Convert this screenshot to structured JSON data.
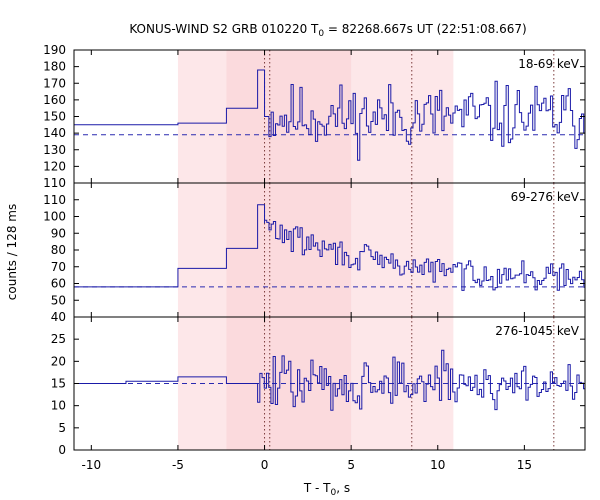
{
  "chart_data": {
    "type": "line",
    "title_main": "KONUS-WIND S2 GRB 010220 T",
    "title_sub": "0",
    "title_rest": " = 82268.667s UT (22:51:08.667)",
    "xlabel_main": "T - T",
    "xlabel_sub": "0",
    "xlabel_rest": ", s",
    "ylabel": "counts / 128 ms",
    "xlim": [
      -11,
      18.5
    ],
    "xticks": [
      -10,
      -5,
      0,
      5,
      10,
      15
    ],
    "shading": [
      {
        "from": -5,
        "to": 10.9,
        "color": "#fde7e9"
      },
      {
        "from": -2.2,
        "to": 5.0,
        "color": "#fbdadd"
      }
    ],
    "vlines": [
      0,
      0.3,
      8.5,
      16.7
    ],
    "line_color": "#1a1aa8",
    "panels": [
      {
        "name": "18-69 keV",
        "ylim": [
          110,
          190
        ],
        "yticks": [
          110,
          120,
          130,
          140,
          150,
          160,
          170,
          180,
          190
        ],
        "background": 139,
        "steps": [
          [
            -11,
            145
          ],
          [
            -5,
            146
          ],
          [
            -2.2,
            155
          ],
          [
            -0.4,
            178
          ],
          [
            0,
            150
          ],
          [
            0.25,
            148
          ]
        ],
        "mean": 150,
        "amp": 16,
        "seed": 11
      },
      {
        "name": "69-276 keV",
        "ylim": [
          40,
          120
        ],
        "yticks": [
          40,
          50,
          60,
          70,
          80,
          90,
          100,
          110
        ],
        "background": 58,
        "steps": [
          [
            -11,
            58
          ],
          [
            -5,
            69
          ],
          [
            -2.2,
            81
          ],
          [
            -0.4,
            107
          ],
          [
            0,
            96
          ]
        ],
        "decay": {
          "start": 0,
          "peak": 95,
          "floor": 62,
          "tau": 6
        },
        "amp": 7,
        "seed": 29
      },
      {
        "name": "276-1045 keV",
        "ylim": [
          0,
          30
        ],
        "yticks": [
          0,
          5,
          10,
          15,
          20,
          25
        ],
        "background": 15,
        "steps": [
          [
            -11,
            15
          ],
          [
            -8,
            15.5
          ],
          [
            -5,
            16.5
          ],
          [
            -2.2,
            15
          ],
          [
            -0.4,
            15
          ]
        ],
        "mean": 15,
        "amp": 5,
        "seed": 47
      }
    ]
  }
}
